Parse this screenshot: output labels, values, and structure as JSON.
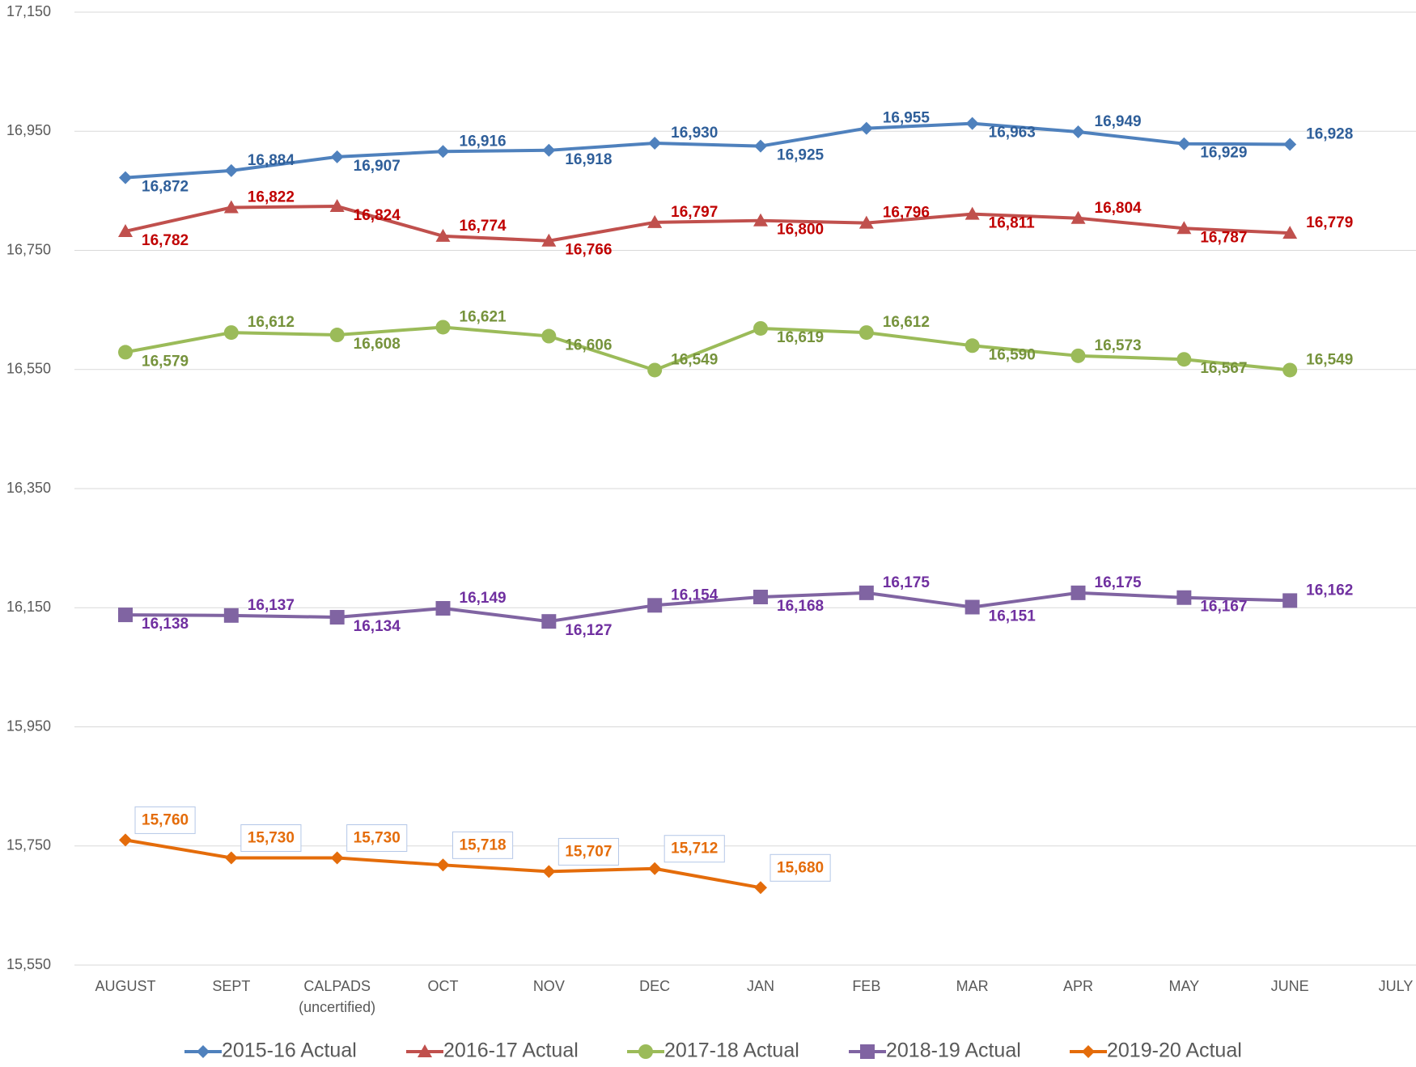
{
  "chart_data": {
    "type": "line",
    "categories": [
      "AUGUST",
      "SEPT",
      "CALPADS (uncertified)",
      "OCT",
      "NOV",
      "DEC",
      "JAN",
      "FEB",
      "MAR",
      "APR",
      "MAY",
      "JUNE",
      "JULY"
    ],
    "ylim": [
      15550,
      17150
    ],
    "yticks": [
      {
        "value": 15550,
        "label": "15,550"
      },
      {
        "value": 15750,
        "label": "15,750"
      },
      {
        "value": 15950,
        "label": "15,950"
      },
      {
        "value": 16150,
        "label": "16,150"
      },
      {
        "value": 16350,
        "label": "16,350"
      },
      {
        "value": 16550,
        "label": "16,550"
      },
      {
        "value": 16750,
        "label": "16,750"
      },
      {
        "value": 16950,
        "label": "16,950"
      },
      {
        "value": 17150,
        "label": "17,150"
      }
    ],
    "grid": true,
    "legend": "bottom",
    "series": [
      {
        "name": "2015-16 Actual",
        "color": "#4f81bd",
        "label_color": "#2f5f9a",
        "marker": "diamond",
        "values": [
          16872,
          16884,
          16907,
          16916,
          16918,
          16930,
          16925,
          16955,
          16963,
          16949,
          16929,
          16928,
          null
        ],
        "value_labels": [
          "16,872",
          "16,884",
          "16,907",
          "16,916",
          "16,918",
          "16,930",
          "16,925",
          "16,955",
          "16,963",
          "16,949",
          "16,929",
          "16,928",
          null
        ]
      },
      {
        "name": "2016-17 Actual",
        "color": "#c0504d",
        "label_color": "#c00000",
        "marker": "triangle",
        "values": [
          16782,
          16822,
          16824,
          16774,
          16766,
          16797,
          16800,
          16796,
          16811,
          16804,
          16787,
          16779,
          null
        ],
        "value_labels": [
          "16,782",
          "16,822",
          "16,824",
          "16,774",
          "16,766",
          "16,797",
          "16,800",
          "16,796",
          "16,811",
          "16,804",
          "16,787",
          "16,779",
          null
        ]
      },
      {
        "name": "2017-18 Actual",
        "color": "#9bbb59",
        "label_color": "#76933c",
        "marker": "circle",
        "values": [
          16579,
          16612,
          16608,
          16621,
          16606,
          16549,
          16619,
          16612,
          16590,
          16573,
          16567,
          16549,
          null
        ],
        "value_labels": [
          "16,579",
          "16,612",
          "16,608",
          "16,621",
          "16,606",
          "16,549",
          "16,619",
          "16,612",
          "16,590",
          "16,573",
          "16,567",
          "16,549",
          null
        ]
      },
      {
        "name": "2018-19 Actual",
        "color": "#8064a2",
        "label_color": "#7030a0",
        "marker": "square",
        "values": [
          16138,
          16137,
          16134,
          16149,
          16127,
          16154,
          16168,
          16175,
          16151,
          16175,
          16167,
          16162,
          null
        ],
        "value_labels": [
          "16,138",
          "16,137",
          "16,134",
          "16,149",
          "16,127",
          "16,154",
          "16,168",
          "16,175",
          "16,151",
          "16,175",
          "16,167",
          "16,162",
          null
        ]
      },
      {
        "name": "2019-20 Actual",
        "color": "#e46c0a",
        "label_color": "#e46c0a",
        "marker": "diamond",
        "boxed_labels": true,
        "values": [
          15760,
          15730,
          15730,
          15718,
          15707,
          15712,
          15680,
          null,
          null,
          null,
          null,
          null,
          null
        ],
        "value_labels": [
          "15,760",
          "15,730",
          "15,730",
          "15,718",
          "15,707",
          "15,712",
          "15,680",
          null,
          null,
          null,
          null,
          null,
          null
        ]
      }
    ]
  }
}
